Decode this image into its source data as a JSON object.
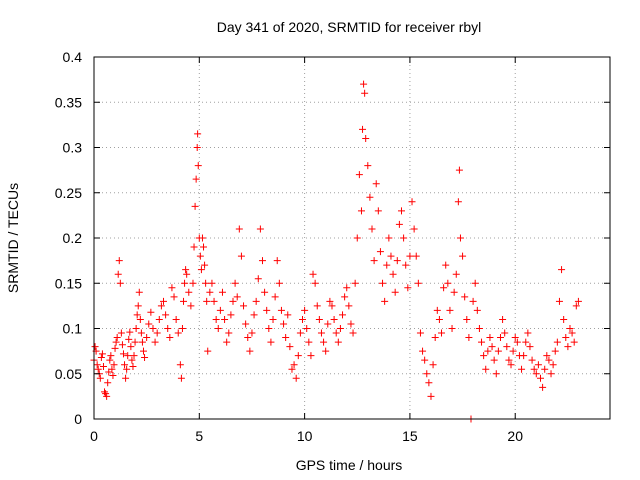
{
  "chart_data": {
    "type": "scatter",
    "title": "Day 341 of 2020, SRMTID for receiver rbyl",
    "xlabel": "GPS time / hours",
    "ylabel": "SRMTID / TECUs",
    "xlim": [
      0,
      24.5
    ],
    "ylim": [
      0,
      0.4
    ],
    "xticks": [
      0,
      5,
      10,
      15,
      20
    ],
    "yticks": [
      0,
      0.05,
      0.1,
      0.15,
      0.2,
      0.25,
      0.3,
      0.35,
      0.4
    ],
    "xtick_labels": [
      "0",
      "5",
      "10",
      "15",
      "20"
    ],
    "ytick_labels": [
      "0",
      "0.05",
      "0.1",
      "0.15",
      "0.2",
      "0.25",
      "0.3",
      "0.35",
      "0.4"
    ],
    "grid": true,
    "marker": "+",
    "color": "#ff0000",
    "series": [
      {
        "name": "SRMTID",
        "points": [
          [
            0.0,
            0.065
          ],
          [
            0.05,
            0.08
          ],
          [
            0.1,
            0.075
          ],
          [
            0.15,
            0.06
          ],
          [
            0.2,
            0.055
          ],
          [
            0.25,
            0.05
          ],
          [
            0.3,
            0.045
          ],
          [
            0.35,
            0.068
          ],
          [
            0.4,
            0.072
          ],
          [
            0.45,
            0.058
          ],
          [
            0.5,
            0.03
          ],
          [
            0.55,
            0.028
          ],
          [
            0.6,
            0.025
          ],
          [
            0.65,
            0.04
          ],
          [
            0.7,
            0.052
          ],
          [
            0.75,
            0.065
          ],
          [
            0.8,
            0.07
          ],
          [
            0.85,
            0.055
          ],
          [
            0.9,
            0.048
          ],
          [
            0.95,
            0.06
          ],
          [
            1.0,
            0.078
          ],
          [
            1.05,
            0.085
          ],
          [
            1.1,
            0.09
          ],
          [
            1.15,
            0.16
          ],
          [
            1.2,
            0.175
          ],
          [
            1.25,
            0.15
          ],
          [
            1.3,
            0.095
          ],
          [
            1.35,
            0.082
          ],
          [
            1.4,
            0.072
          ],
          [
            1.45,
            0.06
          ],
          [
            1.5,
            0.045
          ],
          [
            1.55,
            0.055
          ],
          [
            1.6,
            0.07
          ],
          [
            1.65,
            0.088
          ],
          [
            1.7,
            0.096
          ],
          [
            1.75,
            0.08
          ],
          [
            1.8,
            0.065
          ],
          [
            1.85,
            0.058
          ],
          [
            1.9,
            0.07
          ],
          [
            1.95,
            0.085
          ],
          [
            2.0,
            0.1
          ],
          [
            2.05,
            0.115
          ],
          [
            2.1,
            0.125
          ],
          [
            2.15,
            0.14
          ],
          [
            2.2,
            0.11
          ],
          [
            2.25,
            0.095
          ],
          [
            2.3,
            0.085
          ],
          [
            2.35,
            0.075
          ],
          [
            2.4,
            0.068
          ],
          [
            2.5,
            0.09
          ],
          [
            2.6,
            0.105
          ],
          [
            2.7,
            0.118
          ],
          [
            2.8,
            0.1
          ],
          [
            2.9,
            0.085
          ],
          [
            3.0,
            0.095
          ],
          [
            3.1,
            0.11
          ],
          [
            3.2,
            0.125
          ],
          [
            3.3,
            0.13
          ],
          [
            3.4,
            0.115
          ],
          [
            3.5,
            0.1
          ],
          [
            3.6,
            0.09
          ],
          [
            3.7,
            0.145
          ],
          [
            3.8,
            0.135
          ],
          [
            3.9,
            0.11
          ],
          [
            4.0,
            0.095
          ],
          [
            4.1,
            0.06
          ],
          [
            4.15,
            0.045
          ],
          [
            4.2,
            0.1
          ],
          [
            4.25,
            0.13
          ],
          [
            4.3,
            0.15
          ],
          [
            4.35,
            0.165
          ],
          [
            4.4,
            0.16
          ],
          [
            4.5,
            0.14
          ],
          [
            4.6,
            0.125
          ],
          [
            4.7,
            0.15
          ],
          [
            4.75,
            0.19
          ],
          [
            4.8,
            0.235
          ],
          [
            4.85,
            0.265
          ],
          [
            4.9,
            0.3
          ],
          [
            4.92,
            0.315
          ],
          [
            4.95,
            0.28
          ],
          [
            5.0,
            0.2
          ],
          [
            5.05,
            0.18
          ],
          [
            5.1,
            0.165
          ],
          [
            5.15,
            0.2
          ],
          [
            5.2,
            0.19
          ],
          [
            5.25,
            0.17
          ],
          [
            5.3,
            0.15
          ],
          [
            5.35,
            0.13
          ],
          [
            5.4,
            0.075
          ],
          [
            5.5,
            0.14
          ],
          [
            5.6,
            0.15
          ],
          [
            5.7,
            0.13
          ],
          [
            5.8,
            0.11
          ],
          [
            5.9,
            0.1
          ],
          [
            6.0,
            0.12
          ],
          [
            6.1,
            0.14
          ],
          [
            6.2,
            0.11
          ],
          [
            6.3,
            0.085
          ],
          [
            6.4,
            0.095
          ],
          [
            6.5,
            0.115
          ],
          [
            6.6,
            0.13
          ],
          [
            6.7,
            0.15
          ],
          [
            6.8,
            0.135
          ],
          [
            6.9,
            0.21
          ],
          [
            7.0,
            0.18
          ],
          [
            7.1,
            0.125
          ],
          [
            7.2,
            0.105
          ],
          [
            7.3,
            0.09
          ],
          [
            7.4,
            0.075
          ],
          [
            7.5,
            0.095
          ],
          [
            7.6,
            0.115
          ],
          [
            7.7,
            0.13
          ],
          [
            7.8,
            0.155
          ],
          [
            7.9,
            0.21
          ],
          [
            8.0,
            0.175
          ],
          [
            8.1,
            0.14
          ],
          [
            8.2,
            0.12
          ],
          [
            8.3,
            0.1
          ],
          [
            8.4,
            0.085
          ],
          [
            8.5,
            0.11
          ],
          [
            8.6,
            0.135
          ],
          [
            8.7,
            0.175
          ],
          [
            8.8,
            0.15
          ],
          [
            8.9,
            0.12
          ],
          [
            9.0,
            0.105
          ],
          [
            9.1,
            0.09
          ],
          [
            9.2,
            0.115
          ],
          [
            9.3,
            0.08
          ],
          [
            9.4,
            0.055
          ],
          [
            9.5,
            0.06
          ],
          [
            9.6,
            0.045
          ],
          [
            9.7,
            0.07
          ],
          [
            9.8,
            0.095
          ],
          [
            9.9,
            0.11
          ],
          [
            10.0,
            0.12
          ],
          [
            10.1,
            0.1
          ],
          [
            10.2,
            0.085
          ],
          [
            10.3,
            0.07
          ],
          [
            10.4,
            0.16
          ],
          [
            10.5,
            0.15
          ],
          [
            10.6,
            0.125
          ],
          [
            10.7,
            0.11
          ],
          [
            10.8,
            0.095
          ],
          [
            10.9,
            0.085
          ],
          [
            11.0,
            0.075
          ],
          [
            11.1,
            0.105
          ],
          [
            11.2,
            0.13
          ],
          [
            11.3,
            0.125
          ],
          [
            11.4,
            0.11
          ],
          [
            11.5,
            0.095
          ],
          [
            11.6,
            0.085
          ],
          [
            11.7,
            0.1
          ],
          [
            11.8,
            0.115
          ],
          [
            11.9,
            0.135
          ],
          [
            12.0,
            0.145
          ],
          [
            12.1,
            0.125
          ],
          [
            12.2,
            0.105
          ],
          [
            12.3,
            0.095
          ],
          [
            12.4,
            0.15
          ],
          [
            12.5,
            0.2
          ],
          [
            12.6,
            0.27
          ],
          [
            12.7,
            0.23
          ],
          [
            12.75,
            0.32
          ],
          [
            12.8,
            0.37
          ],
          [
            12.85,
            0.36
          ],
          [
            12.9,
            0.31
          ],
          [
            13.0,
            0.28
          ],
          [
            13.1,
            0.245
          ],
          [
            13.2,
            0.21
          ],
          [
            13.3,
            0.175
          ],
          [
            13.4,
            0.26
          ],
          [
            13.5,
            0.23
          ],
          [
            13.6,
            0.185
          ],
          [
            13.7,
            0.15
          ],
          [
            13.8,
            0.13
          ],
          [
            13.9,
            0.17
          ],
          [
            14.0,
            0.2
          ],
          [
            14.1,
            0.18
          ],
          [
            14.2,
            0.16
          ],
          [
            14.3,
            0.14
          ],
          [
            14.4,
            0.175
          ],
          [
            14.5,
            0.215
          ],
          [
            14.6,
            0.23
          ],
          [
            14.7,
            0.2
          ],
          [
            14.8,
            0.17
          ],
          [
            14.9,
            0.145
          ],
          [
            15.0,
            0.18
          ],
          [
            15.1,
            0.24
          ],
          [
            15.2,
            0.21
          ],
          [
            15.3,
            0.18
          ],
          [
            15.4,
            0.15
          ],
          [
            15.5,
            0.095
          ],
          [
            15.6,
            0.075
          ],
          [
            15.7,
            0.065
          ],
          [
            15.8,
            0.05
          ],
          [
            15.9,
            0.04
          ],
          [
            16.0,
            0.025
          ],
          [
            16.1,
            0.06
          ],
          [
            16.2,
            0.09
          ],
          [
            16.3,
            0.12
          ],
          [
            16.4,
            0.11
          ],
          [
            16.5,
            0.095
          ],
          [
            16.6,
            0.145
          ],
          [
            16.7,
            0.17
          ],
          [
            16.8,
            0.15
          ],
          [
            16.9,
            0.12
          ],
          [
            17.0,
            0.1
          ],
          [
            17.1,
            0.14
          ],
          [
            17.2,
            0.16
          ],
          [
            17.3,
            0.24
          ],
          [
            17.35,
            0.275
          ],
          [
            17.4,
            0.2
          ],
          [
            17.5,
            0.18
          ],
          [
            17.6,
            0.135
          ],
          [
            17.7,
            0.11
          ],
          [
            17.8,
            0.09
          ],
          [
            17.9,
            0.0
          ],
          [
            18.0,
            0.13
          ],
          [
            18.1,
            0.15
          ],
          [
            18.2,
            0.12
          ],
          [
            18.3,
            0.1
          ],
          [
            18.4,
            0.085
          ],
          [
            18.5,
            0.07
          ],
          [
            18.6,
            0.055
          ],
          [
            18.7,
            0.075
          ],
          [
            18.8,
            0.09
          ],
          [
            18.9,
            0.08
          ],
          [
            19.0,
            0.065
          ],
          [
            19.1,
            0.05
          ],
          [
            19.2,
            0.075
          ],
          [
            19.3,
            0.09
          ],
          [
            19.4,
            0.11
          ],
          [
            19.5,
            0.095
          ],
          [
            19.6,
            0.08
          ],
          [
            19.7,
            0.065
          ],
          [
            19.8,
            0.06
          ],
          [
            19.9,
            0.075
          ],
          [
            20.0,
            0.09
          ],
          [
            20.1,
            0.085
          ],
          [
            20.2,
            0.07
          ],
          [
            20.3,
            0.055
          ],
          [
            20.4,
            0.07
          ],
          [
            20.5,
            0.085
          ],
          [
            20.6,
            0.095
          ],
          [
            20.7,
            0.08
          ],
          [
            20.8,
            0.065
          ],
          [
            20.9,
            0.055
          ],
          [
            21.0,
            0.05
          ],
          [
            21.1,
            0.06
          ],
          [
            21.2,
            0.045
          ],
          [
            21.3,
            0.035
          ],
          [
            21.4,
            0.055
          ],
          [
            21.5,
            0.07
          ],
          [
            21.6,
            0.065
          ],
          [
            21.7,
            0.05
          ],
          [
            21.8,
            0.06
          ],
          [
            21.9,
            0.075
          ],
          [
            22.0,
            0.085
          ],
          [
            22.1,
            0.13
          ],
          [
            22.2,
            0.165
          ],
          [
            22.3,
            0.11
          ],
          [
            22.4,
            0.09
          ],
          [
            22.5,
            0.08
          ],
          [
            22.6,
            0.1
          ],
          [
            22.7,
            0.095
          ],
          [
            22.8,
            0.085
          ],
          [
            22.9,
            0.125
          ],
          [
            23.0,
            0.13
          ]
        ]
      }
    ]
  }
}
